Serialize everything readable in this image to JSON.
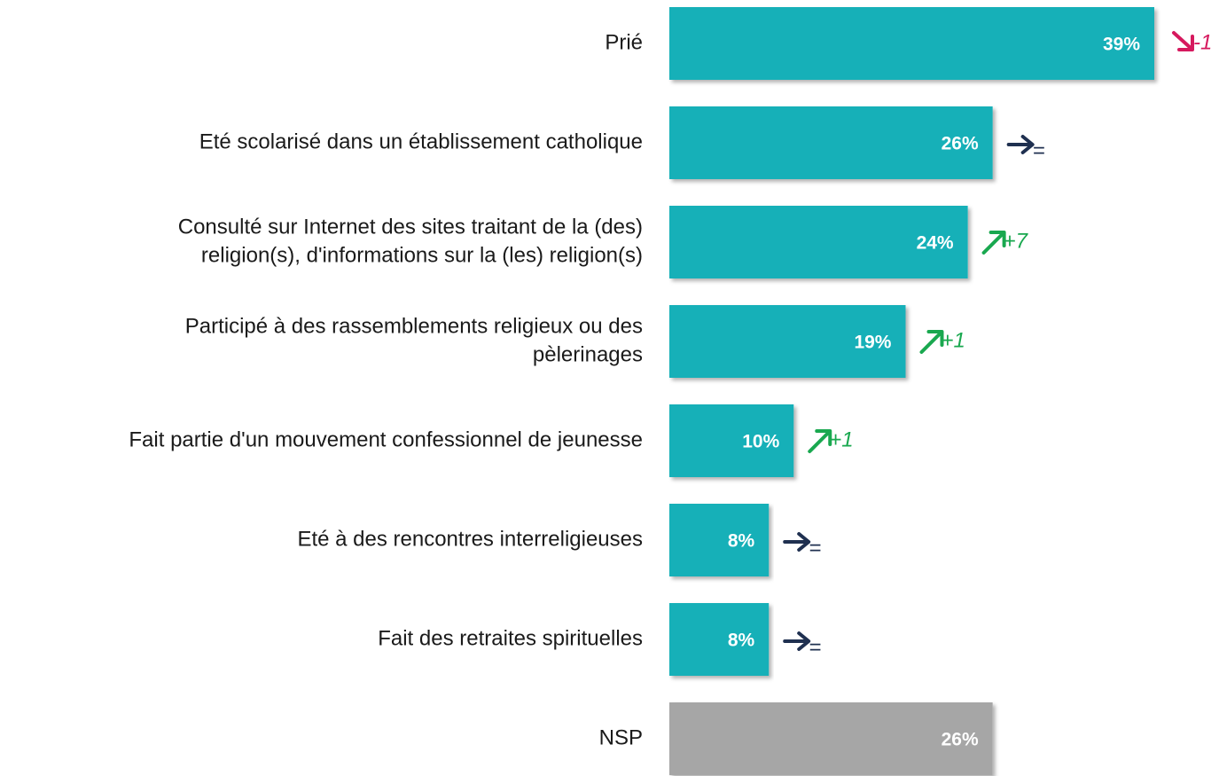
{
  "chart_data": {
    "type": "bar",
    "orientation": "horizontal",
    "categories": [
      "Prié",
      "Eté scolarisé dans un établissement catholique",
      [
        "Consulté sur Internet des sites traitant de la (des)",
        "religion(s), d'informations sur la (les) religion(s)"
      ],
      [
        "Participé à des rassemblements religieux ou des",
        "pèlerinages"
      ],
      "Fait partie d'un mouvement confessionnel de jeunesse",
      "Eté à des rencontres interreligieuses",
      "Fait des retraites spirituelles",
      "NSP"
    ],
    "values": [
      39,
      26,
      24,
      19,
      10,
      8,
      8,
      26
    ],
    "value_labels": [
      "39%",
      "26%",
      "24%",
      "19%",
      "10%",
      "8%",
      "8%",
      "26%"
    ],
    "colors": [
      "#14b0b8",
      "#14b0b8",
      "#14b0b8",
      "#14b0b8",
      "#14b0b8",
      "#14b0b8",
      "#14b0b8",
      "#a6a6a6"
    ],
    "changes": [
      "-1",
      "=",
      "+7",
      "+1",
      "+1",
      "=",
      "=",
      null
    ],
    "change_colors": {
      "down": "#d6195e",
      "flat": "#1f3050",
      "up": "#19a84f"
    }
  }
}
